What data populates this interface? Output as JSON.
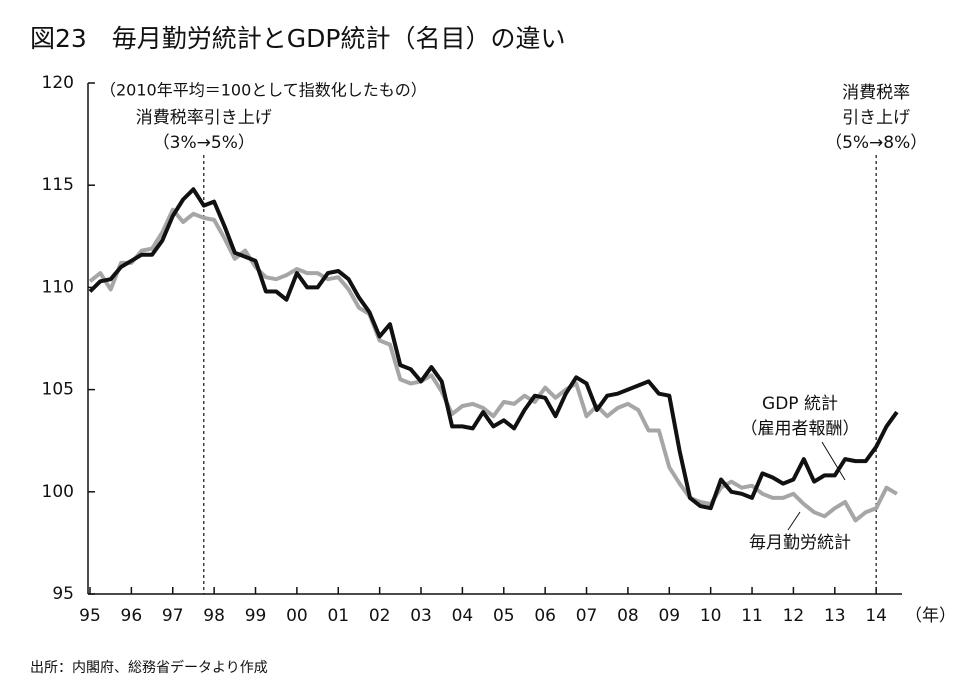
{
  "chart_data": {
    "type": "line",
    "title": "図23　毎月勤労統計とGDP統計（名目）の違い",
    "note": "（2010年平均＝100として指数化したもの）",
    "source": "出所：内閣府、総務省データより作成",
    "xlabel": "（年）",
    "xlim": [
      1995,
      2014.6
    ],
    "ylim": [
      95,
      120
    ],
    "yticks": [
      95,
      100,
      105,
      110,
      115,
      120
    ],
    "xticks": [
      {
        "value": 1995,
        "label": "95"
      },
      {
        "value": 1996,
        "label": "96"
      },
      {
        "value": 1997,
        "label": "97"
      },
      {
        "value": 1998,
        "label": "98"
      },
      {
        "value": 1999,
        "label": "99"
      },
      {
        "value": 2000,
        "label": "00"
      },
      {
        "value": 2001,
        "label": "01"
      },
      {
        "value": 2002,
        "label": "02"
      },
      {
        "value": 2003,
        "label": "03"
      },
      {
        "value": 2004,
        "label": "04"
      },
      {
        "value": 2005,
        "label": "05"
      },
      {
        "value": 2006,
        "label": "06"
      },
      {
        "value": 2007,
        "label": "07"
      },
      {
        "value": 2008,
        "label": "08"
      },
      {
        "value": 2009,
        "label": "09"
      },
      {
        "value": 2010,
        "label": "10"
      },
      {
        "value": 2011,
        "label": "11"
      },
      {
        "value": 2012,
        "label": "12"
      },
      {
        "value": 2013,
        "label": "13"
      },
      {
        "value": 2014,
        "label": "14"
      }
    ],
    "x": [
      1995,
      1995.25,
      1995.5,
      1995.75,
      1996,
      1996.25,
      1996.5,
      1996.75,
      1997,
      1997.25,
      1997.5,
      1997.75,
      1998,
      1998.25,
      1998.5,
      1998.75,
      1999,
      1999.25,
      1999.5,
      1999.75,
      2000,
      2000.25,
      2000.5,
      2000.75,
      2001,
      2001.25,
      2001.5,
      2001.75,
      2002,
      2002.25,
      2002.5,
      2002.75,
      2003,
      2003.25,
      2003.5,
      2003.75,
      2004,
      2004.25,
      2004.5,
      2004.75,
      2005,
      2005.25,
      2005.5,
      2005.75,
      2006,
      2006.25,
      2006.5,
      2006.75,
      2007,
      2007.25,
      2007.5,
      2007.75,
      2008,
      2008.25,
      2008.5,
      2008.75,
      2009,
      2009.25,
      2009.5,
      2009.75,
      2010,
      2010.25,
      2010.5,
      2010.75,
      2011,
      2011.25,
      2011.5,
      2011.75,
      2012,
      2012.25,
      2012.5,
      2012.75,
      2013,
      2013.25,
      2013.5,
      2013.75,
      2014,
      2014.25,
      2014.5
    ],
    "series": [
      {
        "name": "毎月勤労統計",
        "color": "#a6a6a6",
        "values": [
          110.3,
          110.7,
          109.9,
          111.2,
          111.2,
          111.8,
          111.9,
          112.7,
          113.8,
          113.2,
          113.6,
          113.4,
          113.3,
          112.4,
          111.4,
          111.8,
          111.0,
          110.5,
          110.4,
          110.6,
          110.9,
          110.7,
          110.7,
          110.4,
          110.5,
          109.9,
          109.0,
          108.7,
          107.4,
          107.2,
          105.5,
          105.3,
          105.4,
          105.7,
          104.9,
          103.8,
          104.2,
          104.3,
          104.1,
          103.7,
          104.4,
          104.3,
          104.7,
          104.4,
          105.1,
          104.6,
          105.0,
          105.3,
          103.7,
          104.2,
          103.7,
          104.1,
          104.3,
          104.0,
          103.0,
          103.0,
          101.2,
          100.4,
          99.7,
          99.5,
          99.4,
          100.2,
          100.5,
          100.2,
          100.3,
          99.9,
          99.7,
          99.7,
          99.9,
          99.4,
          99.0,
          98.8,
          99.2,
          99.5,
          98.6,
          99.0,
          99.2,
          100.2,
          99.9
        ]
      },
      {
        "name": "GDP 統計",
        "name_note": "（雇用者報酬）",
        "color": "#111111",
        "values": [
          109.8,
          110.3,
          110.4,
          111.0,
          111.3,
          111.6,
          111.6,
          112.3,
          113.5,
          114.3,
          114.8,
          114.0,
          114.2,
          113.0,
          111.7,
          111.5,
          111.3,
          109.8,
          109.8,
          109.4,
          110.7,
          110.0,
          110.0,
          110.7,
          110.8,
          110.4,
          109.5,
          108.8,
          107.6,
          108.2,
          106.2,
          106.0,
          105.4,
          106.1,
          105.4,
          103.2,
          103.2,
          103.1,
          103.9,
          103.2,
          103.5,
          103.1,
          104.0,
          104.7,
          104.6,
          103.7,
          104.8,
          105.6,
          105.3,
          104.0,
          104.7,
          104.8,
          105.0,
          105.2,
          105.4,
          104.8,
          104.7,
          102.0,
          99.7,
          99.3,
          99.2,
          100.6,
          100.0,
          99.9,
          99.7,
          100.9,
          100.7,
          100.4,
          100.6,
          101.6,
          100.5,
          100.8,
          100.8,
          101.6,
          101.5,
          101.5,
          102.2,
          103.2,
          103.9
        ]
      }
    ],
    "annotations": [
      {
        "x": 1997.75,
        "lines": [
          "消費税率引き上げ",
          "（3%→5%）"
        ]
      },
      {
        "x": 2014,
        "lines": [
          "消費税率",
          "引き上げ",
          "（5%→8%）"
        ]
      }
    ]
  }
}
